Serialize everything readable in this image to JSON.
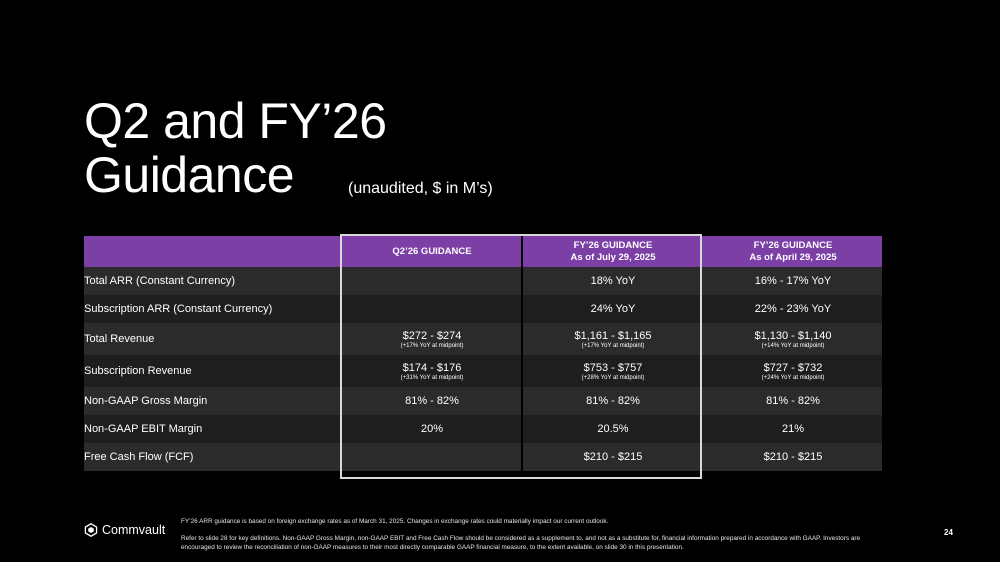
{
  "slide": {
    "title_line1": "Q2 and FY’26",
    "title_line2": "Guidance",
    "subtitle": "(unaudited, $ in M’s)",
    "page_number": "24"
  },
  "table": {
    "headers": [
      {
        "line1": "",
        "line2": ""
      },
      {
        "line1": "Q2’26 GUIDANCE",
        "line2": ""
      },
      {
        "line1": "FY’26 GUIDANCE",
        "line2": "As of July 29, 2025"
      },
      {
        "line1": "FY’26 GUIDANCE",
        "line2": "As of April 29, 2025"
      }
    ],
    "rows": [
      {
        "label": "Total ARR (Constant Currency)",
        "q2": {
          "value": "",
          "sub": ""
        },
        "fy_jul": {
          "value": "18% YoY",
          "sub": ""
        },
        "fy_apr": {
          "value": "16% - 17% YoY",
          "sub": ""
        }
      },
      {
        "label": "Subscription ARR (Constant Currency)",
        "q2": {
          "value": "",
          "sub": ""
        },
        "fy_jul": {
          "value": "24% YoY",
          "sub": ""
        },
        "fy_apr": {
          "value": "22% - 23% YoY",
          "sub": ""
        }
      },
      {
        "label": "Total Revenue",
        "q2": {
          "value": "$272 - $274",
          "sub": "(+17% YoY at midpoint)"
        },
        "fy_jul": {
          "value": "$1,161 - $1,165",
          "sub": "(+17% YoY at midpoint)"
        },
        "fy_apr": {
          "value": "$1,130 - $1,140",
          "sub": "(+14% YoY at midpoint)"
        }
      },
      {
        "label": "Subscription Revenue",
        "q2": {
          "value": "$174 - $176",
          "sub": "(+31% YoY at midpoint)"
        },
        "fy_jul": {
          "value": "$753 - $757",
          "sub": "(+28% YoY at midpoint)"
        },
        "fy_apr": {
          "value": "$727 - $732",
          "sub": "(+24% YoY at midpoint)"
        }
      },
      {
        "label": "Non-GAAP Gross Margin",
        "q2": {
          "value": "81% - 82%",
          "sub": ""
        },
        "fy_jul": {
          "value": "81% - 82%",
          "sub": ""
        },
        "fy_apr": {
          "value": "81% - 82%",
          "sub": ""
        }
      },
      {
        "label": "Non-GAAP EBIT Margin",
        "q2": {
          "value": "20%",
          "sub": ""
        },
        "fy_jul": {
          "value": "20.5%",
          "sub": ""
        },
        "fy_apr": {
          "value": "21%",
          "sub": ""
        }
      },
      {
        "label": "Free Cash Flow (FCF)",
        "q2": {
          "value": "",
          "sub": ""
        },
        "fy_jul": {
          "value": "$210 - $215",
          "sub": ""
        },
        "fy_apr": {
          "value": "$210 - $215",
          "sub": ""
        }
      }
    ]
  },
  "footer": {
    "logo_text": "Commvault",
    "logo_icon": "commvault-logo-icon",
    "note1": "FY’26 ARR guidance is based on foreign exchange rates as of March 31, 2025. Changes in exchange rates could materially impact our current outlook.",
    "note2": "Refer to slide 28 for key definitions. Non-GAAP Gross Margin, non-GAAP EBIT and Free Cash Flow should be considered as a supplement to, and not as a substitute for, financial information prepared in accordance with GAAP. Investors are encouraged to review the reconciliation of non-GAAP measures to their most directly comparable GAAP financial measure, to the extent available, on slide 30 in this presentation."
  },
  "colors": {
    "header_purple": "#7b3fa6",
    "row_light": "#2b2b2b",
    "row_dark": "#1e1e1e",
    "highlight_border": "#d9d9d9"
  }
}
